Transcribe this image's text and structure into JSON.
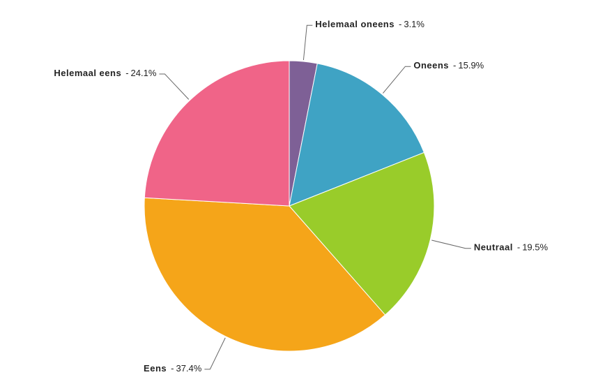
{
  "chart_data": {
    "type": "pie",
    "categories": [
      "Helemaal oneens",
      "Oneens",
      "Neutraal",
      "Eens",
      "Helemaal eens"
    ],
    "values": [
      3.1,
      15.9,
      19.5,
      37.4,
      24.1
    ],
    "value_labels": [
      "3.1%",
      "15.9%",
      "19.5%",
      "37.4%",
      "24.1%"
    ],
    "label_separator": "-",
    "colors": [
      "#7e6096",
      "#3fa3c4",
      "#99cc2a",
      "#f5a519",
      "#f06488"
    ]
  }
}
